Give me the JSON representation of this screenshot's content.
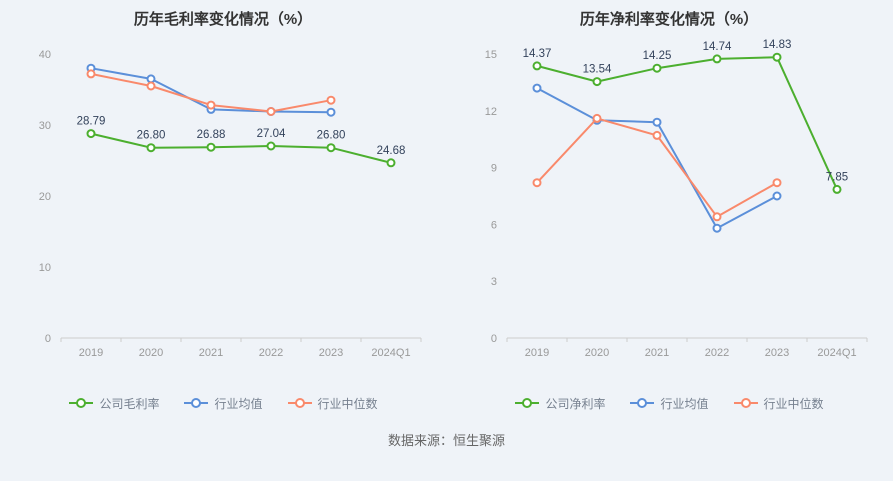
{
  "page": {
    "source_text": "数据来源：恒生聚源",
    "background_color": "#eff3f8"
  },
  "chart_data": [
    {
      "type": "line",
      "title": "历年毛利率变化情况（%）",
      "categories": [
        "2019",
        "2020",
        "2021",
        "2022",
        "2023",
        "2024Q1"
      ],
      "ylim": [
        0,
        40
      ],
      "ytick_step": 10,
      "grid": false,
      "legend_position": "bottom",
      "series": [
        {
          "name": "公司毛利率",
          "color": "#4caf2f",
          "values": [
            28.79,
            26.8,
            26.88,
            27.04,
            26.8,
            24.68
          ],
          "labels": [
            "28.79",
            "26.80",
            "26.88",
            "27.04",
            "26.80",
            "24.68"
          ]
        },
        {
          "name": "行业均值",
          "color": "#5b8fd9",
          "values": [
            38.0,
            36.5,
            32.2,
            31.9,
            31.8,
            null
          ]
        },
        {
          "name": "行业中位数",
          "color": "#f9896b",
          "values": [
            37.2,
            35.5,
            32.8,
            31.9,
            33.5,
            null
          ]
        }
      ]
    },
    {
      "type": "line",
      "title": "历年净利率变化情况（%）",
      "categories": [
        "2019",
        "2020",
        "2021",
        "2022",
        "2023",
        "2024Q1"
      ],
      "ylim": [
        0,
        15
      ],
      "ytick_step": 3,
      "grid": false,
      "legend_position": "bottom",
      "series": [
        {
          "name": "公司净利率",
          "color": "#4caf2f",
          "values": [
            14.37,
            13.54,
            14.25,
            14.74,
            14.83,
            7.85
          ],
          "labels": [
            "14.37",
            "13.54",
            "14.25",
            "14.74",
            "14.83",
            "7.85"
          ]
        },
        {
          "name": "行业均值",
          "color": "#5b8fd9",
          "values": [
            13.2,
            11.5,
            11.4,
            5.8,
            7.5,
            null
          ]
        },
        {
          "name": "行业中位数",
          "color": "#f9896b",
          "values": [
            8.2,
            11.6,
            10.7,
            6.4,
            8.2,
            null
          ]
        }
      ]
    }
  ]
}
